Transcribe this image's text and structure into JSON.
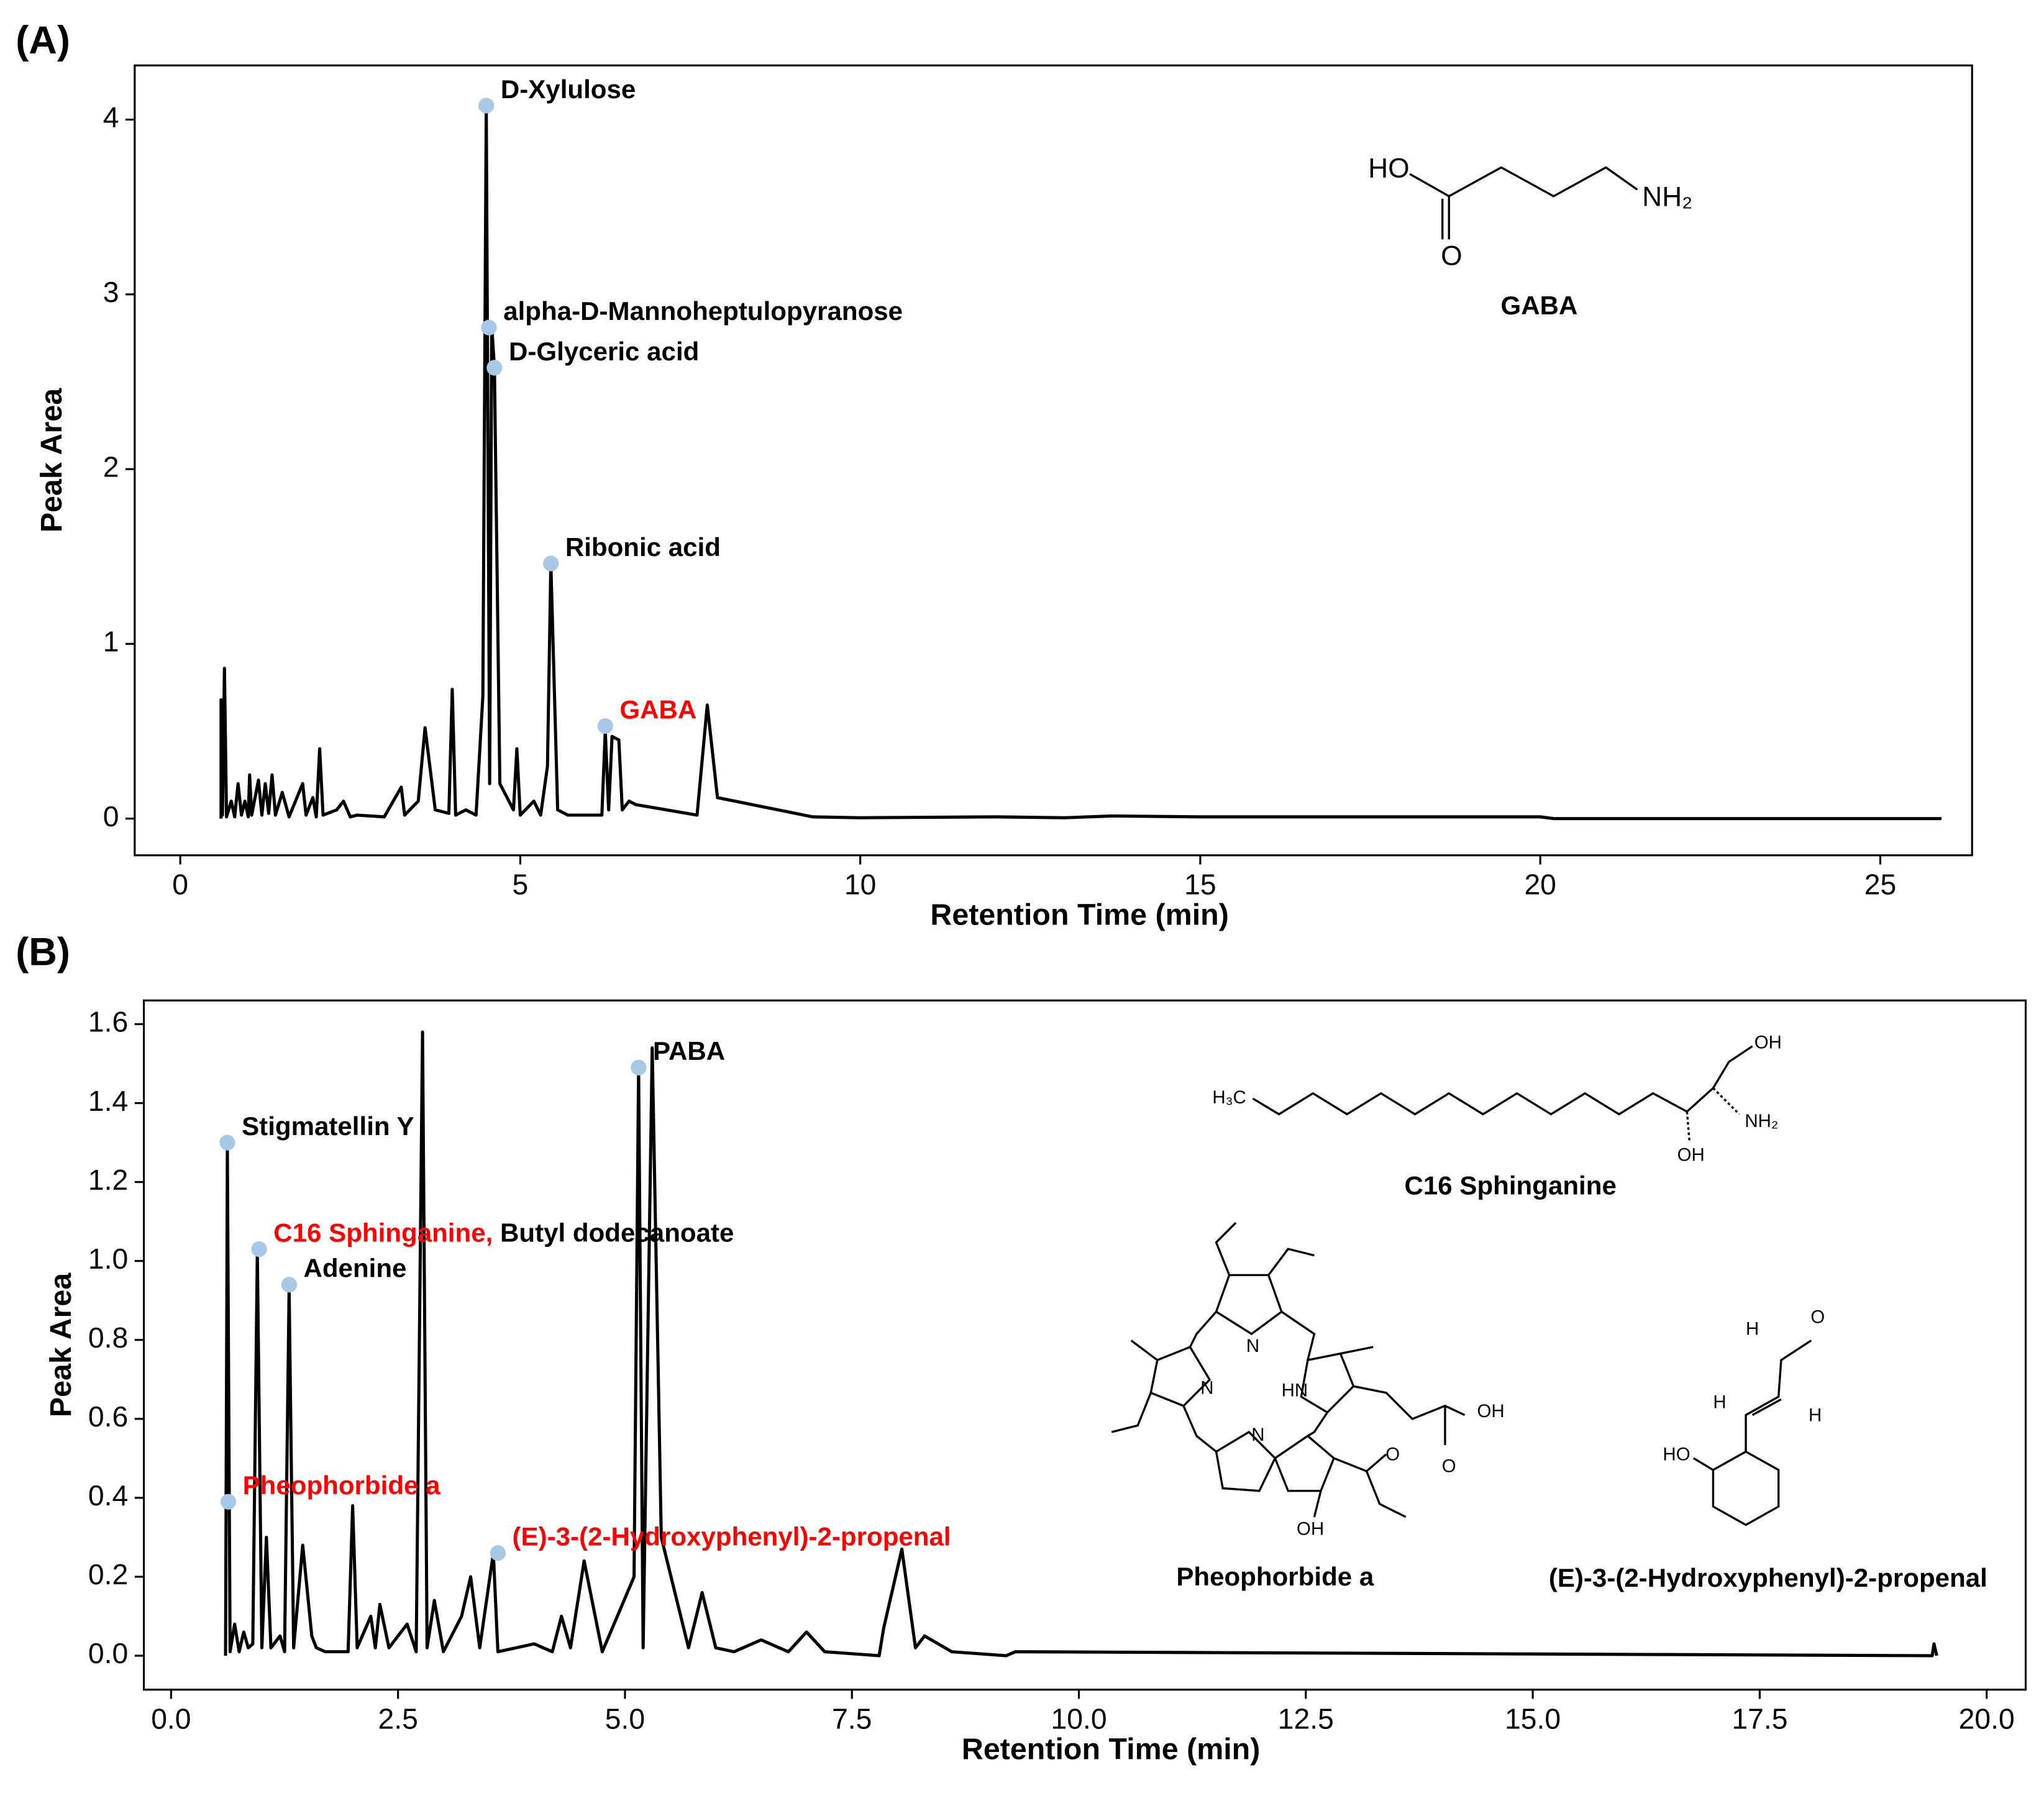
{
  "charts": [
    {
      "type": "line",
      "panel_label": "(A)",
      "x_label": "Retention Time (min)",
      "y_label": "Peak Area",
      "xlim": [
        -0.67,
        26.35
      ],
      "ylim": [
        -0.21,
        4.31
      ],
      "xticks": [
        0,
        5,
        10,
        15,
        20,
        25
      ],
      "yticks": [
        0,
        1,
        2,
        3,
        4
      ],
      "series": [
        {
          "color": "#000000",
          "x": [
            0.6,
            0.6,
            0.62,
            0.65,
            0.68,
            0.75,
            0.8,
            0.85,
            0.9,
            0.95,
            1.0,
            1.02,
            1.05,
            1.15,
            1.2,
            1.25,
            1.3,
            1.35,
            1.4,
            1.5,
            1.6,
            1.8,
            1.85,
            1.95,
            2.0,
            2.05,
            2.1,
            2.3,
            2.4,
            2.5,
            2.6,
            3.0,
            3.25,
            3.3,
            3.5,
            3.6,
            3.75,
            3.95,
            4.0,
            4.05,
            4.2,
            4.35,
            4.45,
            4.5,
            4.55,
            4.58,
            4.62,
            4.7,
            4.9,
            4.95,
            5.0,
            5.2,
            5.3,
            5.4,
            5.45,
            5.55,
            5.7,
            6.2,
            6.25,
            6.3,
            6.35,
            6.45,
            6.5,
            6.6,
            6.7,
            7.6,
            7.75,
            7.9,
            9.3,
            10,
            12,
            13,
            13.7,
            15,
            20,
            20.2,
            25.9
          ],
          "values": [
            0,
            0.68,
            0.02,
            0.86,
            0.01,
            0.1,
            0.01,
            0.2,
            0.02,
            0.1,
            0.01,
            0.25,
            0.02,
            0.22,
            0.02,
            0.2,
            0.03,
            0.25,
            0.02,
            0.15,
            0.01,
            0.2,
            0.02,
            0.12,
            0.01,
            0.4,
            0.02,
            0.05,
            0.1,
            0.01,
            0.02,
            0.01,
            0.18,
            0.02,
            0.1,
            0.52,
            0.05,
            0.03,
            0.74,
            0.02,
            0.05,
            0.02,
            0.7,
            4.08,
            0.2,
            2.82,
            2.58,
            0.2,
            0.05,
            0.4,
            0.02,
            0.1,
            0.02,
            0.3,
            1.46,
            0.05,
            0.02,
            0.02,
            0.5,
            0.05,
            0.47,
            0.45,
            0.05,
            0.1,
            0.08,
            0.02,
            0.65,
            0.12,
            0.01,
            0.005,
            0.01,
            0.005,
            0.015,
            0.01,
            0.01,
            0,
            0
          ]
        }
      ],
      "marker_color": "#a8c8e8",
      "annotations": [
        {
          "x": 4.5,
          "y": 4.08,
          "label_parts": [
            {
              "text": "D-Xylulose",
              "color": "#000000"
            }
          ]
        },
        {
          "x": 4.54,
          "y": 2.81,
          "label_parts": [
            {
              "text": "alpha-D-Mannoheptulopyranose",
              "color": "#000000"
            }
          ]
        },
        {
          "x": 4.62,
          "y": 2.58,
          "label_parts": [
            {
              "text": "D-Glyceric acid",
              "color": "#000000"
            }
          ]
        },
        {
          "x": 5.45,
          "y": 1.46,
          "label_parts": [
            {
              "text": "Ribonic acid",
              "color": "#000000"
            }
          ]
        },
        {
          "x": 6.25,
          "y": 0.53,
          "label_parts": [
            {
              "text": "GABA",
              "color": "#ff0000"
            }
          ]
        }
      ],
      "structures": [
        {
          "name": "GABA",
          "atoms": [
            "HO",
            "O",
            "NH₂"
          ]
        }
      ]
    },
    {
      "type": "line",
      "panel_label": "(B)",
      "x_label": "Retention Time (min)",
      "y_label": "Peak Area",
      "xlim": [
        -0.3,
        20.43
      ],
      "ylim": [
        -0.086,
        1.66
      ],
      "xticks": [
        {
          "value": 0,
          "label": "0.0"
        },
        2.5,
        {
          "value": 5,
          "label": "5.0"
        },
        7.5,
        {
          "value": 10,
          "label": "10.0"
        },
        12.5,
        {
          "value": 15,
          "label": "15.0"
        },
        17.5,
        {
          "value": 20,
          "label": "20.0"
        }
      ],
      "yticks": [
        {
          "value": 0,
          "label": "0.0"
        },
        0.2,
        0.4,
        0.6,
        0.8,
        {
          "value": 1,
          "label": "1.0"
        },
        1.2,
        1.4,
        1.6
      ],
      "series": [
        {
          "color": "#000000",
          "x": [
            0.6,
            0.62,
            0.65,
            0.7,
            0.75,
            0.8,
            0.85,
            0.9,
            0.95,
            1.0,
            1.05,
            1.1,
            1.2,
            1.25,
            1.3,
            1.35,
            1.45,
            1.55,
            1.6,
            1.7,
            1.95,
            2.0,
            2.05,
            2.2,
            2.25,
            2.3,
            2.4,
            2.6,
            2.7,
            2.77,
            2.82,
            2.9,
            3.0,
            3.2,
            3.3,
            3.4,
            3.55,
            3.6,
            3.8,
            4.0,
            4.2,
            4.3,
            4.4,
            4.55,
            4.75,
            5.1,
            5.15,
            5.2,
            5.3,
            5.4,
            5.7,
            5.85,
            6.0,
            6.2,
            6.5,
            6.8,
            7.0,
            7.2,
            7.8,
            7.85,
            8.05,
            8.2,
            8.3,
            8.6,
            9.2,
            9.3,
            19.4,
            19.42,
            19.45
          ],
          "values": [
            0,
            1.28,
            0.01,
            0.08,
            0.01,
            0.06,
            0.02,
            0.03,
            1.02,
            0.02,
            0.3,
            0.02,
            0.05,
            0.01,
            0.93,
            0.02,
            0.28,
            0.05,
            0.02,
            0.01,
            0.01,
            0.38,
            0.02,
            0.1,
            0.02,
            0.13,
            0.02,
            0.08,
            0.01,
            1.58,
            0.02,
            0.14,
            0.01,
            0.1,
            0.2,
            0.02,
            0.26,
            0.01,
            0.02,
            0.03,
            0.01,
            0.1,
            0.02,
            0.24,
            0.01,
            0.2,
            1.49,
            0.02,
            1.54,
            0.3,
            0.02,
            0.16,
            0.02,
            0.01,
            0.04,
            0.01,
            0.06,
            0.01,
            0,
            0.07,
            0.27,
            0.02,
            0.05,
            0.01,
            0,
            0.01,
            0,
            0.03,
            0
          ]
        }
      ],
      "marker_color": "#a8c8e8",
      "annotations": [
        {
          "x": 0.62,
          "y": 1.3,
          "label_parts": [
            {
              "text": "Stigmatellin Y",
              "color": "#000000"
            }
          ]
        },
        {
          "x": 0.97,
          "y": 1.03,
          "label_parts": [
            {
              "text": "C16 Sphinganine,",
              "color": "#ff0000"
            },
            {
              "text": "Butyl dodecanoate",
              "color": "#000000"
            }
          ]
        },
        {
          "x": 1.3,
          "y": 0.94,
          "label_parts": [
            {
              "text": "Adenine",
              "color": "#000000"
            }
          ]
        },
        {
          "x": 0.63,
          "y": 0.39,
          "label_parts": [
            {
              "text": "Pheophorbide a",
              "color": "#ff0000"
            }
          ]
        },
        {
          "x": 3.6,
          "y": 0.26,
          "label_parts": [
            {
              "text": "(E)-3-(2-Hydroxyphenyl)-2-propenal",
              "color": "#ff0000"
            }
          ]
        },
        {
          "x": 5.15,
          "y": 1.49,
          "label_parts": [
            {
              "text": "PABA",
              "color": "#000000"
            }
          ]
        }
      ],
      "structures": [
        {
          "name": "C16 Sphinganine",
          "atoms": [
            "H₃C",
            "OH",
            "NH₂",
            "OH"
          ]
        },
        {
          "name": "Pheophorbide a",
          "atoms": [
            "N",
            "N",
            "HN",
            "N",
            "OH",
            "O",
            "O",
            "OH"
          ]
        },
        {
          "name": "(E)-3-(2-Hydroxyphenyl)-2-propenal",
          "atoms": [
            "O",
            "H",
            "H",
            "H",
            "HO"
          ]
        }
      ]
    }
  ]
}
